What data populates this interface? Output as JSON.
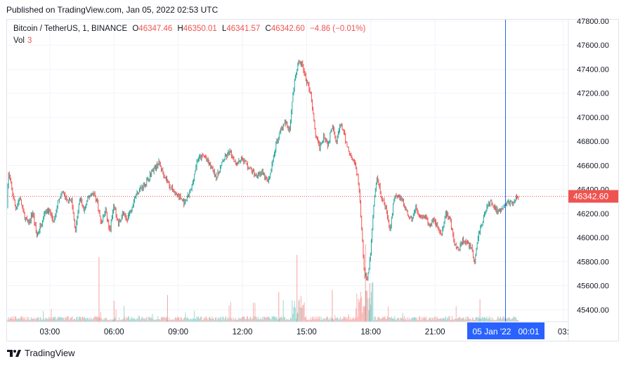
{
  "header": {
    "published": "Published on TradingView.com, Jan 05, 2022 02:53 UTC"
  },
  "legend": {
    "symbol": "Bitcoin / TetherUS, 1, BINANCE",
    "o_label": "O",
    "o": "46347.46",
    "h_label": "H",
    "h": "46350.01",
    "l_label": "L",
    "l": "46341.57",
    "c_label": "C",
    "c": "46342.60",
    "change": "−4.86 (−0.01%)"
  },
  "volume": {
    "label": "Vol",
    "value": "3"
  },
  "crosshair_label": "05 Jan '22   00:01",
  "last_price_label": "46342.60",
  "footer": {
    "brand": "TradingView"
  },
  "colors": {
    "up": "#26a69a",
    "down": "#ef5350",
    "crosshair": "#2962ff",
    "grid": "#f0f3fa"
  },
  "chart_data": {
    "type": "line",
    "title": "Bitcoin / TetherUS, 1, BINANCE",
    "interval": "1 minute",
    "ylim": [
      45300,
      47800
    ],
    "y_ticks": [
      "47800.00",
      "47600.00",
      "47400.00",
      "47200.00",
      "47000.00",
      "46800.00",
      "46600.00",
      "46400.00",
      "46200.00",
      "46000.00",
      "45800.00",
      "45600.00",
      "45400.00"
    ],
    "y_tick_values": [
      47800,
      47600,
      47400,
      47200,
      47000,
      46800,
      46600,
      46400,
      46200,
      46000,
      45800,
      45600,
      45400
    ],
    "x_ticks": [
      "03:00",
      "06:00",
      "09:00",
      "12:00",
      "15:00",
      "18:00",
      "21:00",
      "03:"
    ],
    "x_tick_hours": [
      3,
      6,
      9,
      12,
      15,
      18,
      21,
      27
    ],
    "xlim_hours": [
      1.0,
      27.2
    ],
    "last_price": 46342.6,
    "price_path": [
      [
        1.0,
        46250
      ],
      [
        1.05,
        46550
      ],
      [
        1.2,
        46420
      ],
      [
        1.4,
        46240
      ],
      [
        1.6,
        46330
      ],
      [
        1.8,
        46180
      ],
      [
        2.0,
        46110
      ],
      [
        2.2,
        46210
      ],
      [
        2.4,
        46010
      ],
      [
        2.6,
        46120
      ],
      [
        2.8,
        46230
      ],
      [
        3.0,
        46210
      ],
      [
        3.2,
        46120
      ],
      [
        3.4,
        46320
      ],
      [
        3.6,
        46380
      ],
      [
        3.8,
        46300
      ],
      [
        4.0,
        46320
      ],
      [
        4.2,
        46050
      ],
      [
        4.4,
        46330
      ],
      [
        4.6,
        46220
      ],
      [
        4.8,
        46330
      ],
      [
        5.0,
        46380
      ],
      [
        5.2,
        46310
      ],
      [
        5.4,
        46110
      ],
      [
        5.6,
        46230
      ],
      [
        5.8,
        46050
      ],
      [
        6.0,
        46270
      ],
      [
        6.2,
        46110
      ],
      [
        6.4,
        46200
      ],
      [
        6.6,
        46150
      ],
      [
        6.8,
        46240
      ],
      [
        7.0,
        46350
      ],
      [
        7.2,
        46400
      ],
      [
        7.5,
        46460
      ],
      [
        7.8,
        46560
      ],
      [
        8.1,
        46620
      ],
      [
        8.4,
        46500
      ],
      [
        8.7,
        46400
      ],
      [
        9.0,
        46350
      ],
      [
        9.3,
        46280
      ],
      [
        9.6,
        46400
      ],
      [
        9.9,
        46650
      ],
      [
        10.2,
        46680
      ],
      [
        10.5,
        46600
      ],
      [
        10.8,
        46500
      ],
      [
        11.1,
        46640
      ],
      [
        11.4,
        46710
      ],
      [
        11.7,
        46620
      ],
      [
        12.0,
        46660
      ],
      [
        12.3,
        46580
      ],
      [
        12.6,
        46520
      ],
      [
        12.9,
        46540
      ],
      [
        13.2,
        46460
      ],
      [
        13.4,
        46620
      ],
      [
        13.6,
        46800
      ],
      [
        13.8,
        46900
      ],
      [
        14.0,
        46950
      ],
      [
        14.2,
        46900
      ],
      [
        14.4,
        47250
      ],
      [
        14.6,
        47450
      ],
      [
        14.8,
        47440
      ],
      [
        15.0,
        47300
      ],
      [
        15.2,
        47200
      ],
      [
        15.4,
        46860
      ],
      [
        15.6,
        46750
      ],
      [
        15.8,
        46850
      ],
      [
        16.0,
        46770
      ],
      [
        16.2,
        46950
      ],
      [
        16.4,
        46800
      ],
      [
        16.6,
        46950
      ],
      [
        16.8,
        46820
      ],
      [
        17.0,
        46700
      ],
      [
        17.2,
        46650
      ],
      [
        17.4,
        46500
      ],
      [
        17.55,
        46150
      ],
      [
        17.7,
        45700
      ],
      [
        17.85,
        45650
      ],
      [
        18.0,
        45900
      ],
      [
        18.15,
        46300
      ],
      [
        18.3,
        46500
      ],
      [
        18.5,
        46330
      ],
      [
        18.7,
        46250
      ],
      [
        18.9,
        46050
      ],
      [
        19.1,
        46350
      ],
      [
        19.3,
        46350
      ],
      [
        19.5,
        46300
      ],
      [
        19.7,
        46200
      ],
      [
        19.9,
        46150
      ],
      [
        20.1,
        46250
      ],
      [
        20.3,
        46150
      ],
      [
        20.5,
        46180
      ],
      [
        20.7,
        46100
      ],
      [
        20.9,
        46150
      ],
      [
        21.1,
        46100
      ],
      [
        21.3,
        46020
      ],
      [
        21.5,
        46200
      ],
      [
        21.7,
        46150
      ],
      [
        21.9,
        45950
      ],
      [
        22.1,
        45900
      ],
      [
        22.3,
        45980
      ],
      [
        22.5,
        45950
      ],
      [
        22.7,
        45920
      ],
      [
        22.85,
        45780
      ],
      [
        23.0,
        46000
      ],
      [
        23.2,
        46120
      ],
      [
        23.4,
        46250
      ],
      [
        23.6,
        46300
      ],
      [
        23.8,
        46250
      ],
      [
        24.0,
        46200
      ],
      [
        24.2,
        46250
      ],
      [
        24.4,
        46300
      ],
      [
        24.6,
        46280
      ],
      [
        24.8,
        46340
      ],
      [
        24.9,
        46342.6
      ]
    ]
  }
}
